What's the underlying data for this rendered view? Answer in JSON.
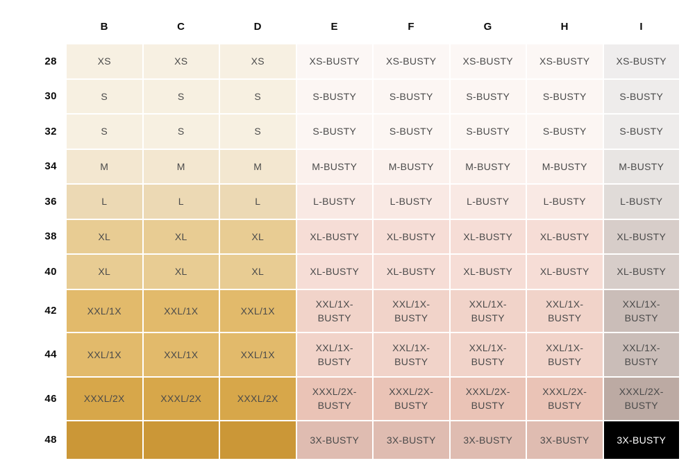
{
  "table": {
    "column_headers": [
      "B",
      "C",
      "D",
      "E",
      "F",
      "G",
      "H",
      "I"
    ],
    "text_color": "#4a4a4a",
    "header_text_color": "#0b0b0b",
    "inverse_text_color": "#ffffff",
    "rows": [
      {
        "band": "28",
        "standard_size": "XS",
        "busty_size": "XS-BUSTY",
        "colors": {
          "standard_bg": "#f7f0e2",
          "busty_bg": "#fcf7f5",
          "last_bg": "#efeded"
        }
      },
      {
        "band": "30",
        "standard_size": "S",
        "busty_size": "S-BUSTY",
        "colors": {
          "standard_bg": "#f7f0e1",
          "busty_bg": "#fcf6f3",
          "last_bg": "#eeeceb"
        }
      },
      {
        "band": "32",
        "standard_size": "S",
        "busty_size": "S-BUSTY",
        "colors": {
          "standard_bg": "#f7f0e1",
          "busty_bg": "#fcf6f3",
          "last_bg": "#eeeceb"
        }
      },
      {
        "band": "34",
        "standard_size": "M",
        "busty_size": "M-BUSTY",
        "colors": {
          "standard_bg": "#f3e7d0",
          "busty_bg": "#fbf1ed",
          "last_bg": "#e8e5e3"
        }
      },
      {
        "band": "36",
        "standard_size": "L",
        "busty_size": "L-BUSTY",
        "colors": {
          "standard_bg": "#ecd9b4",
          "busty_bg": "#f9e9e4",
          "last_bg": "#e0dbd8"
        }
      },
      {
        "band": "38",
        "standard_size": "XL",
        "busty_size": "XL-BUSTY",
        "colors": {
          "standard_bg": "#e8cc93",
          "busty_bg": "#f6ddd6",
          "last_bg": "#d7cdc9"
        }
      },
      {
        "band": "40",
        "standard_size": "XL",
        "busty_size": "XL-BUSTY",
        "colors": {
          "standard_bg": "#e8cc93",
          "busty_bg": "#f6ddd6",
          "last_bg": "#d7cdc9"
        }
      },
      {
        "band": "42",
        "standard_size": "XXL/1X",
        "busty_size": "XXL/1X-BUSTY",
        "colors": {
          "standard_bg": "#e2ba6b",
          "busty_bg": "#f1d3c9",
          "last_bg": "#cabdb8"
        }
      },
      {
        "band": "44",
        "standard_size": "XXL/1X",
        "busty_size": "XXL/1X-BUSTY",
        "colors": {
          "standard_bg": "#e2ba6b",
          "busty_bg": "#f1d3c9",
          "last_bg": "#cabdb8"
        }
      },
      {
        "band": "46",
        "standard_size": "XXXL/2X",
        "busty_size": "XXXL/2X-BUSTY",
        "colors": {
          "standard_bg": "#d7a74a",
          "busty_bg": "#eac3b6",
          "last_bg": "#bcaaa3"
        }
      },
      {
        "band": "48",
        "standard_size": "",
        "busty_size": "3X-BUSTY",
        "colors": {
          "standard_bg": "#cb9737",
          "busty_bg": "#dfbcb1",
          "last_bg": "#000000"
        }
      }
    ]
  }
}
